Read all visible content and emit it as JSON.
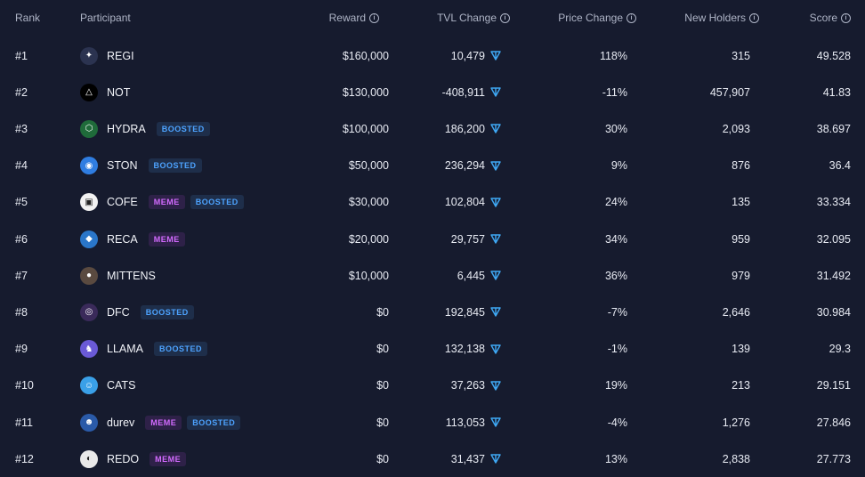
{
  "header": {
    "rank": "Rank",
    "participant": "Participant",
    "reward": "Reward",
    "tvl_change": "TVL Change",
    "price_change": "Price Change",
    "new_holders": "New Holders",
    "score": "Score"
  },
  "colors": {
    "background": "#161b2e",
    "boosted_text": "#4da3ff",
    "boosted_bg": "#1e2e4a",
    "meme_text": "#d36bff",
    "meme_bg": "#2e2148",
    "ton_icon": "#3fa9f5"
  },
  "rows": [
    {
      "rank": "#1",
      "name": "REGI",
      "avatar_icon": "regi-avatar-icon",
      "avatar_color": "#2b3350",
      "badges": [],
      "reward": "$160,000",
      "tvl_change": "10,479",
      "price_change": "118%",
      "new_holders": "315",
      "score": "49.528"
    },
    {
      "rank": "#2",
      "name": "NOT",
      "avatar_icon": "not-avatar-icon",
      "avatar_color": "#000000",
      "badges": [],
      "reward": "$130,000",
      "tvl_change": "-408,911",
      "price_change": "-11%",
      "new_holders": "457,907",
      "score": "41.83"
    },
    {
      "rank": "#3",
      "name": "HYDRA",
      "avatar_icon": "hydra-avatar-icon",
      "avatar_color": "#1f6b3a",
      "badges": [
        "BOOSTED"
      ],
      "reward": "$100,000",
      "tvl_change": "186,200",
      "price_change": "30%",
      "new_holders": "2,093",
      "score": "38.697"
    },
    {
      "rank": "#4",
      "name": "STON",
      "avatar_icon": "ston-avatar-icon",
      "avatar_color": "#2f7de1",
      "badges": [
        "BOOSTED"
      ],
      "reward": "$50,000",
      "tvl_change": "236,294",
      "price_change": "9%",
      "new_holders": "876",
      "score": "36.4"
    },
    {
      "rank": "#5",
      "name": "COFE",
      "avatar_icon": "cofe-avatar-icon",
      "avatar_color": "#f2f2f2",
      "badges": [
        "MEME",
        "BOOSTED"
      ],
      "reward": "$30,000",
      "tvl_change": "102,804",
      "price_change": "24%",
      "new_holders": "135",
      "score": "33.334"
    },
    {
      "rank": "#6",
      "name": "RECA",
      "avatar_icon": "reca-avatar-icon",
      "avatar_color": "#2a76c9",
      "badges": [
        "MEME"
      ],
      "reward": "$20,000",
      "tvl_change": "29,757",
      "price_change": "34%",
      "new_holders": "959",
      "score": "32.095"
    },
    {
      "rank": "#7",
      "name": "MITTENS",
      "avatar_icon": "mittens-avatar-icon",
      "avatar_color": "#5a4a40",
      "badges": [],
      "reward": "$10,000",
      "tvl_change": "6,445",
      "price_change": "36%",
      "new_holders": "979",
      "score": "31.492"
    },
    {
      "rank": "#8",
      "name": "DFC",
      "avatar_icon": "dfc-avatar-icon",
      "avatar_color": "#3a2a5a",
      "badges": [
        "BOOSTED"
      ],
      "reward": "$0",
      "tvl_change": "192,845",
      "price_change": "-7%",
      "new_holders": "2,646",
      "score": "30.984"
    },
    {
      "rank": "#9",
      "name": "LLAMA",
      "avatar_icon": "llama-avatar-icon",
      "avatar_color": "#6a5ad6",
      "badges": [
        "BOOSTED"
      ],
      "reward": "$0",
      "tvl_change": "132,138",
      "price_change": "-1%",
      "new_holders": "139",
      "score": "29.3"
    },
    {
      "rank": "#10",
      "name": "CATS",
      "avatar_icon": "cats-avatar-icon",
      "avatar_color": "#3aa0e8",
      "badges": [],
      "reward": "$0",
      "tvl_change": "37,263",
      "price_change": "19%",
      "new_holders": "213",
      "score": "29.151"
    },
    {
      "rank": "#11",
      "name": "durev",
      "avatar_icon": "durev-avatar-icon",
      "avatar_color": "#2a5aa8",
      "badges": [
        "MEME",
        "BOOSTED"
      ],
      "reward": "$0",
      "tvl_change": "113,053",
      "price_change": "-4%",
      "new_holders": "1,276",
      "score": "27.846"
    },
    {
      "rank": "#12",
      "name": "REDO",
      "avatar_icon": "redo-avatar-icon",
      "avatar_color": "#e9e9e9",
      "badges": [
        "MEME"
      ],
      "reward": "$0",
      "tvl_change": "31,437",
      "price_change": "13%",
      "new_holders": "2,838",
      "score": "27.773"
    }
  ]
}
